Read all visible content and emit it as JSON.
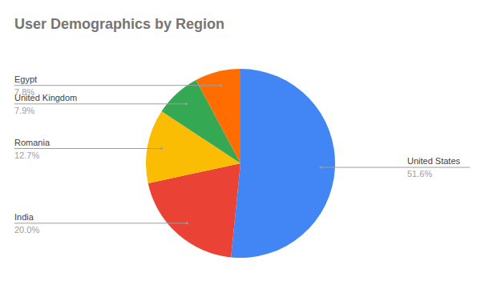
{
  "chart_data": {
    "type": "pie",
    "title": "User Demographics by Region",
    "categories": [
      "United States",
      "India",
      "Romania",
      "United Kingdom",
      "Egypt"
    ],
    "values": [
      51.6,
      20.0,
      12.7,
      7.9,
      7.8
    ],
    "value_labels": [
      "51.6%",
      "20.0%",
      "12.7%",
      "7.9%",
      "7.8%"
    ],
    "colors": [
      "#4285f4",
      "#ea4335",
      "#fbbc04",
      "#34a853",
      "#ff6d01"
    ],
    "data_labels": true
  }
}
